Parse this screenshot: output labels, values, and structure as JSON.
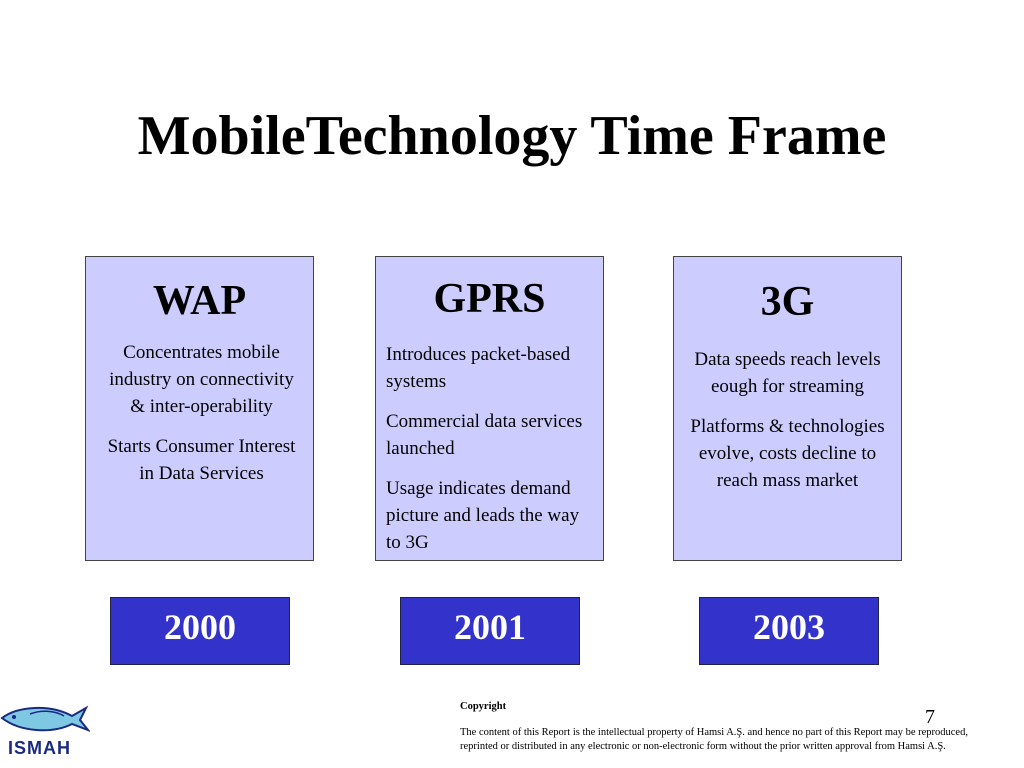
{
  "slide": {
    "title": "MobileTechnology Time Frame",
    "page_number": "7"
  },
  "columns": [
    {
      "heading": "WAP",
      "points": [
        "Concentrates mobile industry on connectivity & inter-operability",
        "Starts Consumer Interest in Data Services"
      ],
      "year": "2000"
    },
    {
      "heading": "GPRS",
      "points": [
        "Introduces packet-based systems",
        "Commercial data services launched",
        "Usage indicates demand picture and leads the way to 3G"
      ],
      "year": "2001"
    },
    {
      "heading": "3G",
      "points": [
        "Data speeds reach levels eough for streaming",
        "Platforms & technologies evolve, costs decline to reach mass market"
      ],
      "year": "2003"
    }
  ],
  "footer": {
    "copyright_heading": "Copyright",
    "copyright_text": "The content of this Report is the intellectual property of Hamsi A.Ş. and hence no part of this Report may be reproduced, reprinted or distributed in any electronic or non-electronic form without the prior written approval from Hamsi A.Ş.",
    "logo_text": "ISMAH",
    "logo_icon": "fish-icon"
  },
  "colors": {
    "card_fill": "#ccccff",
    "year_fill": "#3333cc",
    "year_text": "#ffffff"
  }
}
